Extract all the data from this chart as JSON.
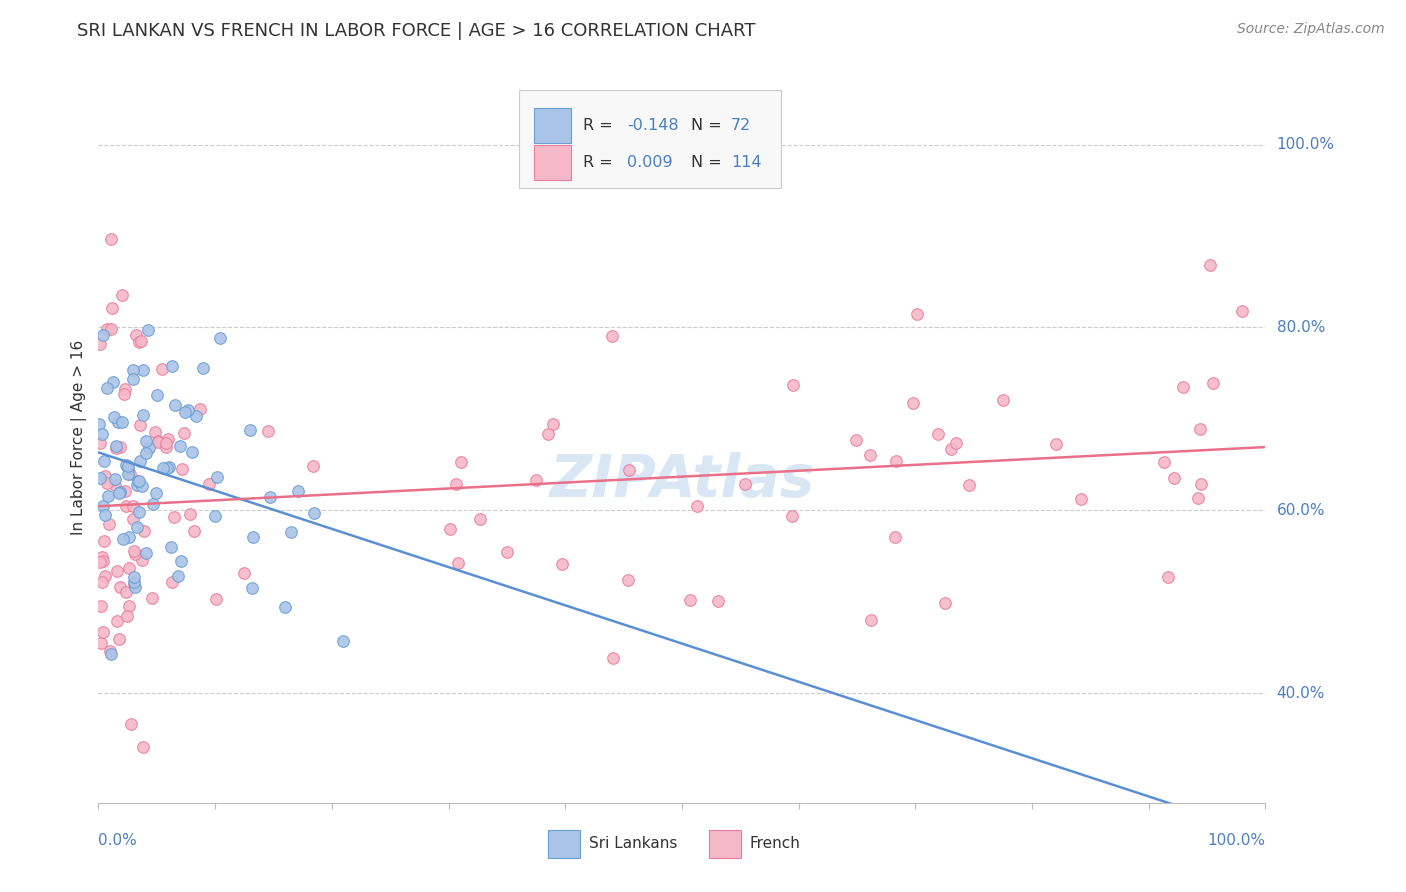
{
  "title": "SRI LANKAN VS FRENCH IN LABOR FORCE | AGE > 16 CORRELATION CHART",
  "source": "Source: ZipAtlas.com",
  "ylabel": "In Labor Force | Age > 16",
  "ytick_labels": [
    "40.0%",
    "60.0%",
    "80.0%",
    "100.0%"
  ],
  "ytick_values": [
    0.4,
    0.6,
    0.8,
    1.0
  ],
  "xlim": [
    0.0,
    1.0
  ],
  "ylim": [
    0.28,
    1.08
  ],
  "sri_lankan_color": "#aac4e8",
  "french_color": "#f5b8c8",
  "sri_lankan_edge": "#6b9fd4",
  "french_edge": "#e87fa0",
  "trend_sri_lankan": "#5b8fd4",
  "trend_french": "#e8708a",
  "sri_lankan_R": -0.148,
  "sri_lankan_N": 72,
  "french_R": 0.009,
  "french_N": 114,
  "background_color": "#ffffff",
  "grid_color": "#cccccc",
  "label_color": "#4a7fc1",
  "text_color": "#333333",
  "watermark_color": "#c0d8ee"
}
